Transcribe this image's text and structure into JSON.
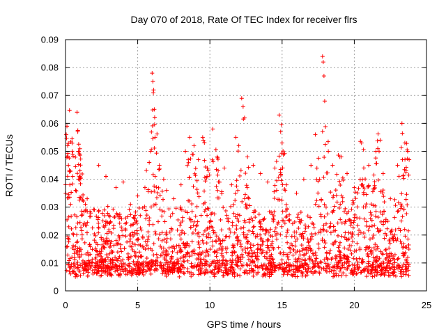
{
  "chart_data": {
    "type": "scatter",
    "title": "Day 070 of 2018, Rate Of TEC Index for receiver flrs",
    "xlabel": "GPS time / hours",
    "ylabel": "ROTI / TECUs",
    "xlim": [
      0,
      25
    ],
    "ylim": [
      0,
      0.09
    ],
    "x_ticks": [
      "0",
      "5",
      "10",
      "15",
      "20",
      "25"
    ],
    "y_ticks": [
      "0",
      "0.01",
      "0.02",
      "0.03",
      "0.04",
      "0.05",
      "0.06",
      "0.07",
      "0.08",
      "0.09"
    ],
    "grid": true,
    "legend": "none",
    "marker": "plus",
    "color": "#ff0000",
    "series": [
      {
        "points": [
          [
            0.05,
            0.056
          ],
          [
            0.1,
            0.059
          ],
          [
            0.15,
            0.052
          ],
          [
            0.2,
            0.045
          ],
          [
            0.3,
            0.038
          ],
          [
            0.35,
            0.031
          ],
          [
            0.5,
            0.041
          ],
          [
            0.7,
            0.036
          ],
          [
            0.8,
            0.064
          ],
          [
            0.85,
            0.057
          ],
          [
            0.9,
            0.05
          ],
          [
            1.0,
            0.043
          ],
          [
            1.5,
            0.033
          ],
          [
            2.0,
            0.029
          ],
          [
            2.3,
            0.045
          ],
          [
            2.8,
            0.041
          ],
          [
            3.0,
            0.027
          ],
          [
            3.5,
            0.037
          ],
          [
            4.0,
            0.039
          ],
          [
            4.5,
            0.031
          ],
          [
            5.0,
            0.034
          ],
          [
            5.5,
            0.037
          ],
          [
            5.8,
            0.046
          ],
          [
            5.9,
            0.05
          ],
          [
            6.0,
            0.078
          ],
          [
            6.05,
            0.075
          ],
          [
            6.1,
            0.072
          ],
          [
            6.15,
            0.065
          ],
          [
            6.2,
            0.055
          ],
          [
            6.5,
            0.045
          ],
          [
            6.8,
            0.04
          ],
          [
            7.0,
            0.036
          ],
          [
            7.5,
            0.033
          ],
          [
            8.0,
            0.038
          ],
          [
            8.3,
            0.05
          ],
          [
            8.6,
            0.055
          ],
          [
            8.9,
            0.052
          ],
          [
            9.2,
            0.047
          ],
          [
            9.5,
            0.055
          ],
          [
            9.8,
            0.041
          ],
          [
            10.2,
            0.058
          ],
          [
            10.5,
            0.048
          ],
          [
            11.0,
            0.044
          ],
          [
            11.5,
            0.038
          ],
          [
            11.8,
            0.055
          ],
          [
            12.0,
            0.052
          ],
          [
            12.2,
            0.069
          ],
          [
            12.3,
            0.066
          ],
          [
            12.4,
            0.062
          ],
          [
            12.6,
            0.048
          ],
          [
            13.0,
            0.045
          ],
          [
            13.5,
            0.042
          ],
          [
            14.0,
            0.039
          ],
          [
            14.5,
            0.044
          ],
          [
            14.8,
            0.063
          ],
          [
            14.9,
            0.057
          ],
          [
            15.0,
            0.053
          ],
          [
            15.3,
            0.038
          ],
          [
            16.0,
            0.035
          ],
          [
            16.5,
            0.04
          ],
          [
            17.0,
            0.045
          ],
          [
            17.3,
            0.056
          ],
          [
            17.6,
            0.04
          ],
          [
            17.8,
            0.084
          ],
          [
            17.85,
            0.082
          ],
          [
            17.9,
            0.077
          ],
          [
            17.95,
            0.068
          ],
          [
            18.2,
            0.05
          ],
          [
            18.5,
            0.045
          ],
          [
            19.0,
            0.048
          ],
          [
            19.5,
            0.042
          ],
          [
            20.0,
            0.037
          ],
          [
            20.5,
            0.053
          ],
          [
            21.0,
            0.045
          ],
          [
            21.5,
            0.05
          ],
          [
            21.8,
            0.054
          ],
          [
            22.0,
            0.042
          ],
          [
            22.5,
            0.033
          ],
          [
            23.0,
            0.045
          ],
          [
            23.3,
            0.06
          ],
          [
            23.5,
            0.053
          ],
          [
            23.7,
            0.05
          ],
          [
            23.8,
            0.047
          ]
        ]
      }
    ]
  }
}
